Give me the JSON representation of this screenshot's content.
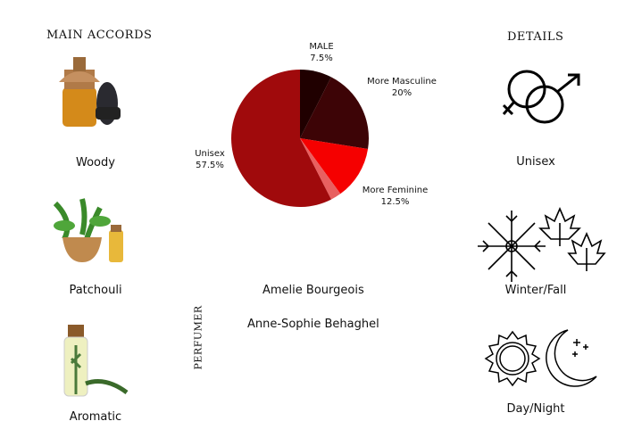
{
  "main_accords": {
    "title": "MAIN ACCORDS",
    "items": [
      {
        "label": "Woody",
        "icon": "woody-image"
      },
      {
        "label": "Patchouli",
        "icon": "patchouli-image"
      },
      {
        "label": "Aromatic",
        "icon": "aromatic-image"
      }
    ]
  },
  "details": {
    "title": "DETAILS",
    "items": [
      {
        "label": "Unisex",
        "icon": "gender-symbols-icon"
      },
      {
        "label": "Winter/Fall",
        "icon": "snowflake-maple-leaf-icon"
      },
      {
        "label": "Day/Night",
        "icon": "sun-moon-icon"
      }
    ]
  },
  "perfumer": {
    "title": "PERFUMER",
    "names": [
      "Amelie Bourgeois",
      "Anne-Sophie Behaghel"
    ]
  },
  "chart_data": {
    "type": "pie",
    "start": "top",
    "direction": "clockwise",
    "slices": [
      {
        "label": "MALE",
        "value_text": "7.5%",
        "value": 7.5,
        "color": "#200000"
      },
      {
        "label": "More Masculine",
        "value_text": "20%",
        "value": 20,
        "color": "#3d0406"
      },
      {
        "label": "More Feminine",
        "value_text": "12.5%",
        "value": 12.5,
        "color": "#f50000"
      },
      {
        "label": "",
        "value_text": "",
        "value": 2.5,
        "color": "#e86060"
      },
      {
        "label": "Unisex",
        "value_text": "57.5%",
        "value": 57.5,
        "color": "#a00a0c"
      }
    ]
  }
}
